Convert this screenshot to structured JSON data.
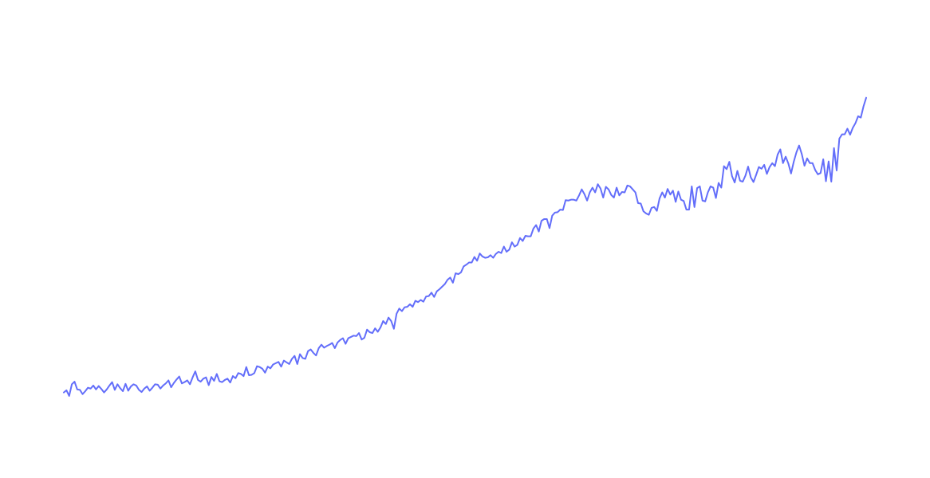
{
  "chart_data": {
    "type": "line",
    "title": "",
    "xlabel": "",
    "ylabel": "",
    "grid": false,
    "axes_visible": false,
    "legend": "none",
    "xlim": [
      0,
      299
    ],
    "ylim": [
      0,
      100
    ],
    "series": [
      {
        "color": "#636efa",
        "y": [
          1.0,
          1.5,
          0.2,
          2.9,
          3.5,
          1.7,
          1.6,
          0.6,
          1.3,
          2.1,
          1.9,
          2.6,
          1.7,
          2.5,
          1.8,
          1.0,
          1.7,
          2.6,
          3.4,
          1.6,
          2.9,
          2.0,
          1.3,
          3.0,
          1.4,
          2.4,
          2.9,
          2.6,
          1.6,
          1.1,
          1.9,
          2.4,
          1.4,
          2.1,
          2.9,
          2.8,
          1.9,
          2.6,
          3.1,
          3.8,
          2.2,
          3.2,
          4.0,
          4.7,
          3.1,
          3.4,
          3.8,
          2.9,
          4.5,
          5.9,
          3.9,
          3.5,
          4.2,
          4.5,
          2.7,
          4.6,
          3.7,
          5.3,
          3.6,
          3.4,
          3.9,
          4.2,
          3.3,
          4.8,
          4.3,
          5.5,
          5.3,
          4.8,
          6.9,
          5.0,
          5.1,
          5.5,
          7.1,
          6.9,
          6.5,
          5.6,
          7.0,
          6.6,
          7.5,
          7.8,
          8.1,
          7.0,
          8.4,
          8.0,
          7.6,
          8.8,
          9.5,
          7.6,
          9.9,
          9.0,
          8.8,
          10.6,
          11.0,
          10.2,
          9.6,
          11.3,
          12.1,
          11.4,
          11.8,
          12.1,
          12.5,
          11.3,
          12.6,
          13.2,
          13.6,
          12.3,
          13.6,
          13.9,
          14.2,
          14.1,
          14.8,
          13.3,
          13.7,
          15.6,
          15.0,
          14.8,
          15.9,
          15.1,
          16.1,
          17.6,
          16.9,
          18.4,
          17.6,
          15.8,
          19.3,
          20.5,
          19.9,
          20.8,
          20.9,
          21.5,
          20.9,
          22.3,
          22.0,
          22.5,
          22.1,
          23.3,
          23.4,
          24.2,
          23.2,
          24.5,
          25.0,
          25.6,
          26.2,
          27.2,
          27.7,
          26.5,
          28.7,
          28.5,
          28.9,
          30.3,
          30.7,
          31.2,
          31.2,
          32.5,
          31.6,
          33.3,
          32.6,
          32.3,
          32.4,
          32.9,
          32.3,
          33.2,
          33.7,
          33.4,
          34.9,
          33.7,
          34.2,
          35.9,
          34.9,
          35.3,
          36.9,
          36.2,
          37.4,
          37.3,
          37.3,
          39.1,
          39.9,
          38.4,
          40.9,
          41.3,
          41.3,
          39.2,
          42.1,
          42.8,
          42.9,
          43.5,
          43.4,
          45.7,
          45.6,
          45.8,
          45.8,
          45.6,
          46.8,
          48.2,
          47.1,
          45.6,
          47.5,
          48.6,
          47.5,
          49.4,
          48.4,
          46.3,
          48.8,
          48.2,
          46.9,
          46.3,
          48.6,
          46.8,
          47.6,
          47.5,
          49.1,
          48.9,
          48.2,
          47.5,
          45.0,
          44.9,
          43.1,
          42.6,
          42.3,
          43.9,
          44.1,
          43.2,
          46.1,
          47.5,
          46.3,
          48.3,
          47.0,
          47.9,
          45.3,
          47.7,
          45.8,
          45.5,
          43.5,
          43.5,
          48.9,
          44.1,
          48.5,
          48.9,
          45.6,
          45.4,
          47.5,
          48.9,
          48.6,
          46.2,
          49.7,
          48.6,
          53.6,
          52.9,
          54.6,
          51.3,
          49.8,
          52.5,
          50.2,
          50.0,
          51.4,
          53.5,
          51.0,
          49.9,
          51.6,
          53.4,
          53.0,
          53.9,
          51.8,
          53.4,
          54.3,
          53.6,
          56.3,
          57.5,
          54.3,
          55.8,
          54.2,
          51.9,
          54.6,
          56.8,
          58.4,
          56.4,
          53.7,
          55.4,
          54.3,
          54.3,
          52.7,
          51.7,
          52.0,
          55.2,
          50.1,
          54.7,
          50.0,
          57.8,
          52.6,
          60.0,
          61.0,
          61.0,
          62.3,
          60.9,
          62.5,
          63.6,
          65.2,
          64.9,
          67.5,
          69.5
        ]
      }
    ]
  }
}
